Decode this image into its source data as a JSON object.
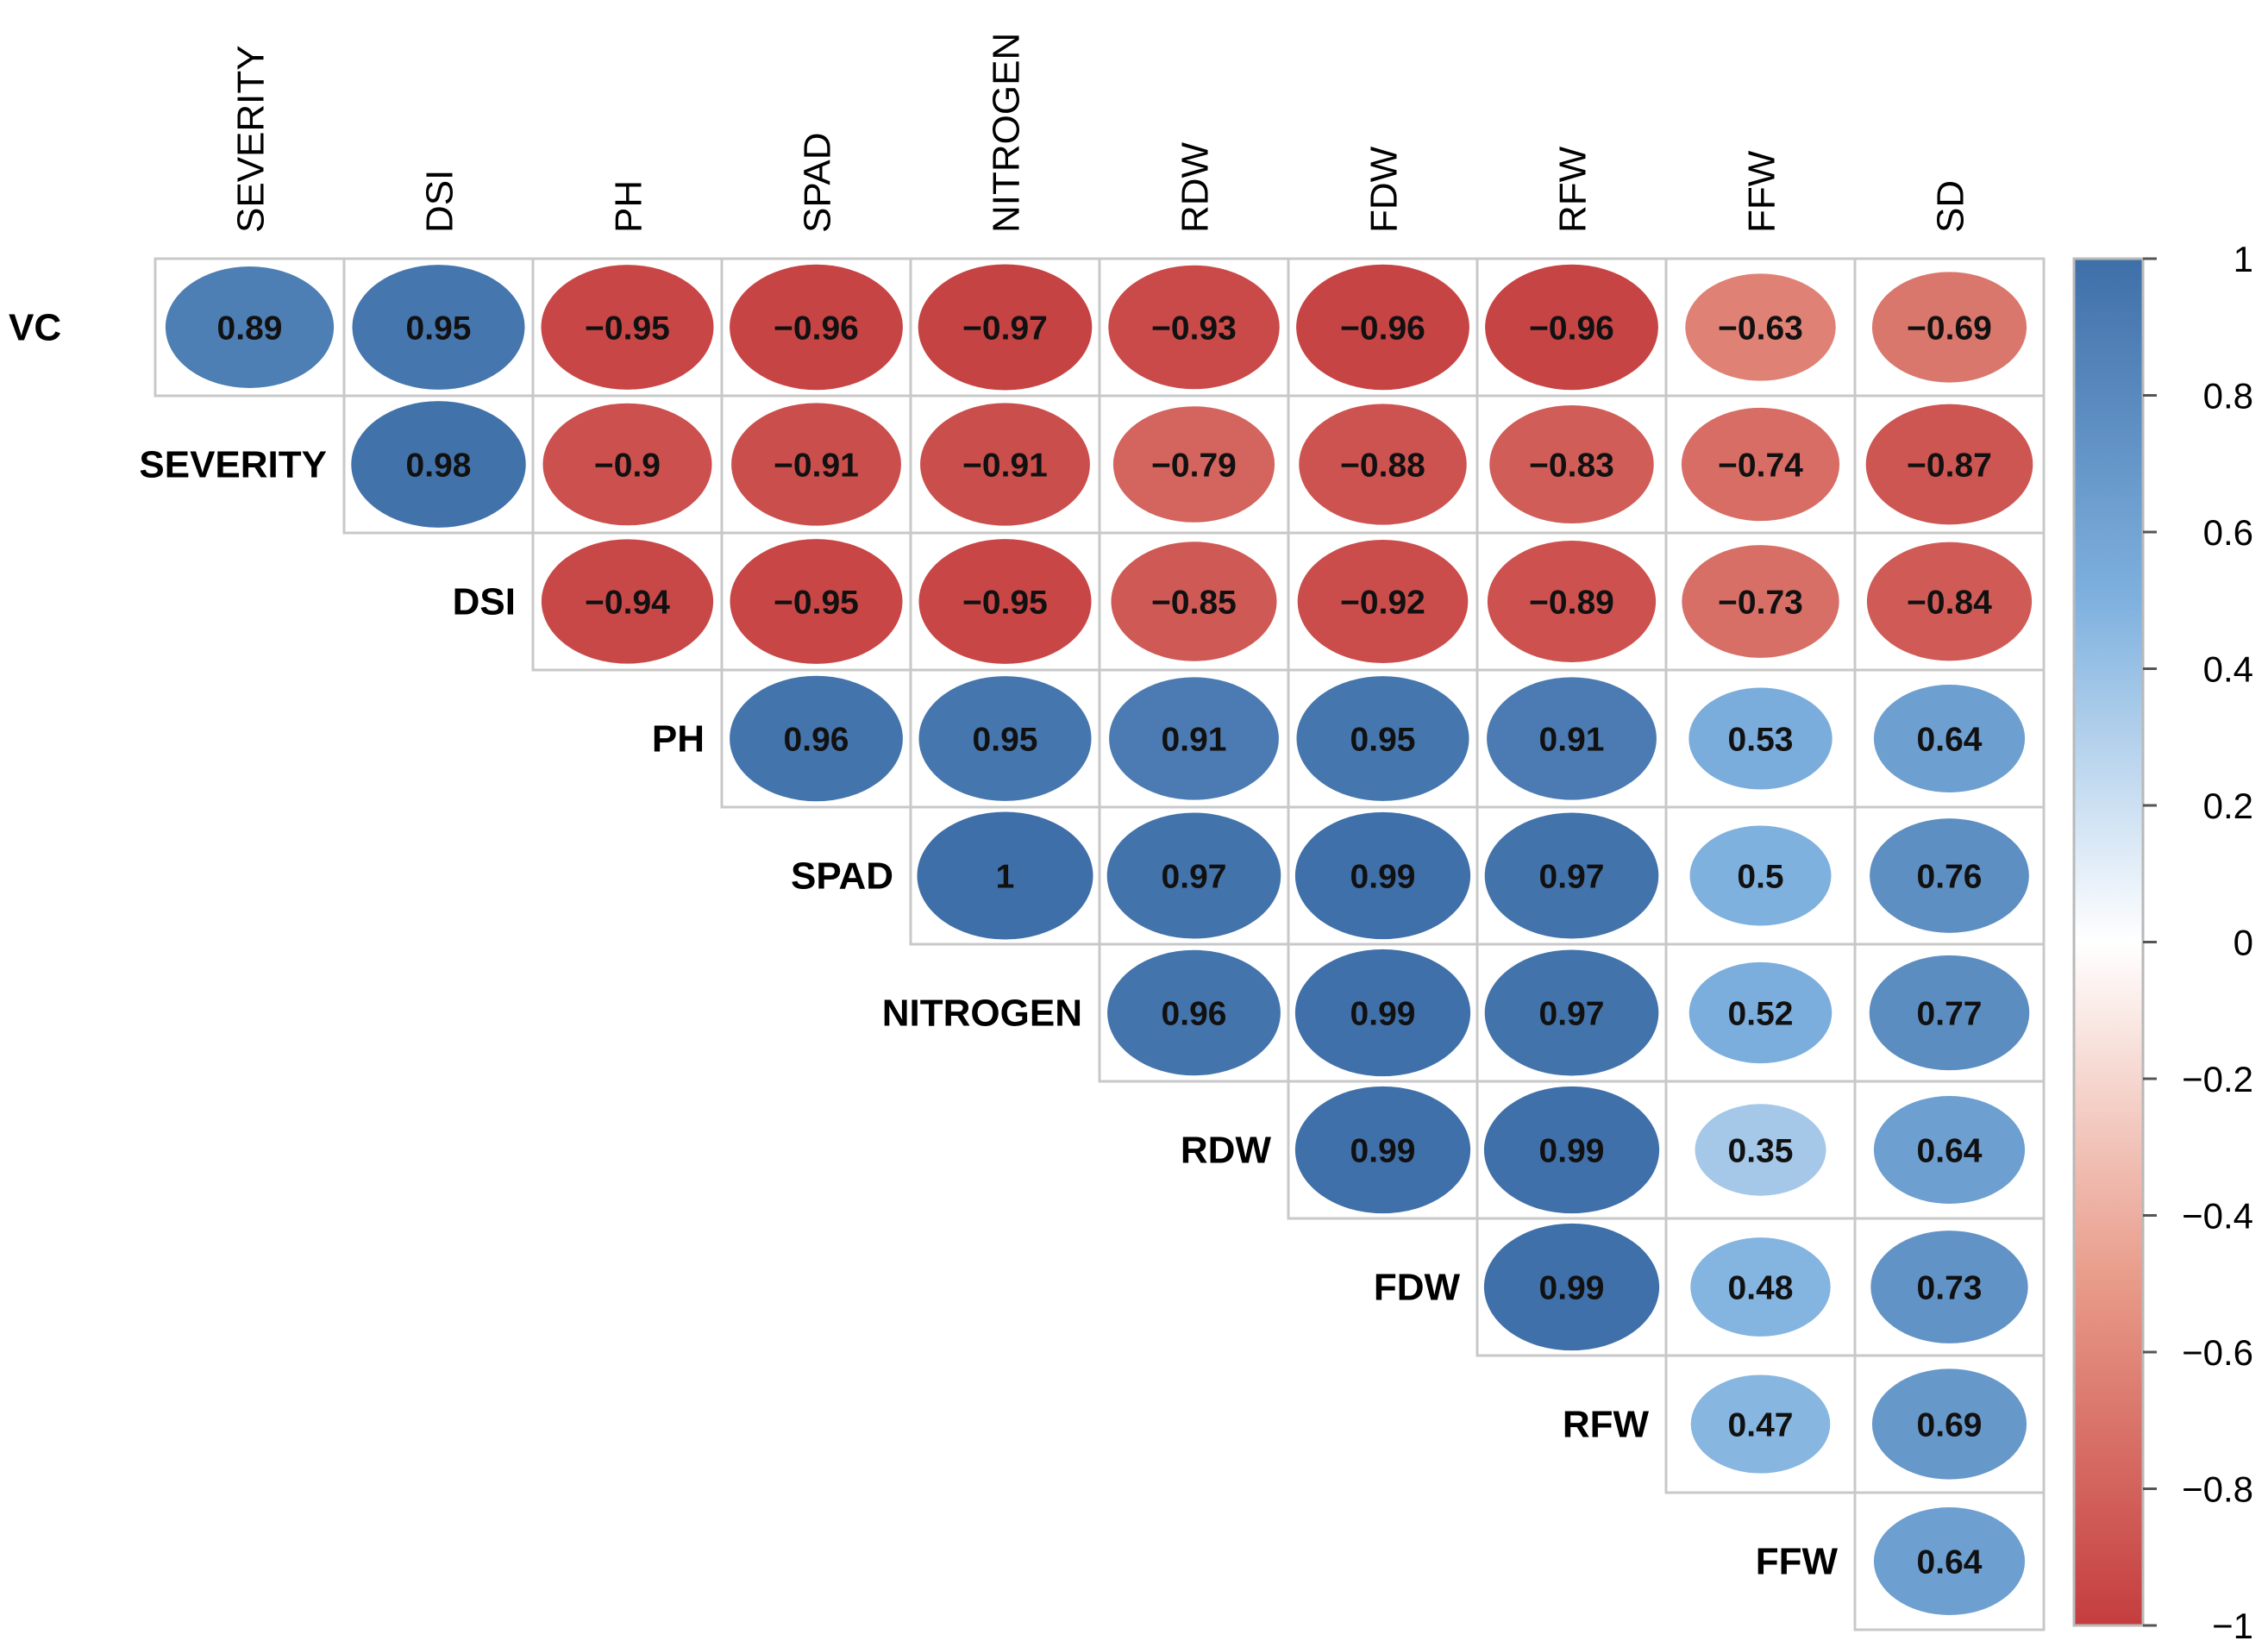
{
  "chart_data": {
    "type": "heatmap",
    "style": "correlation-matrix-ellipse-upper",
    "variables": [
      "VC",
      "SEVERITY",
      "DSI",
      "PH",
      "SPAD",
      "NITROGEN",
      "RDW",
      "FDW",
      "RFW",
      "FFW",
      "SD"
    ],
    "row_labels": [
      "VC",
      "SEVERITY",
      "DSI",
      "PH",
      "SPAD",
      "NITROGEN",
      "RDW",
      "FDW",
      "RFW",
      "FFW"
    ],
    "col_labels": [
      "SEVERITY",
      "DSI",
      "PH",
      "SPAD",
      "NITROGEN",
      "RDW",
      "FDW",
      "RFW",
      "FFW",
      "SD"
    ],
    "cells": [
      {
        "row": 0,
        "col": 0,
        "value": 0.89,
        "label": "0.89"
      },
      {
        "row": 0,
        "col": 1,
        "value": 0.95,
        "label": "0.95"
      },
      {
        "row": 0,
        "col": 2,
        "value": -0.95,
        "label": "−0.95"
      },
      {
        "row": 0,
        "col": 3,
        "value": -0.96,
        "label": "−0.96"
      },
      {
        "row": 0,
        "col": 4,
        "value": -0.97,
        "label": "−0.97"
      },
      {
        "row": 0,
        "col": 5,
        "value": -0.93,
        "label": "−0.93"
      },
      {
        "row": 0,
        "col": 6,
        "value": -0.96,
        "label": "−0.96"
      },
      {
        "row": 0,
        "col": 7,
        "value": -0.96,
        "label": "−0.96"
      },
      {
        "row": 0,
        "col": 8,
        "value": -0.63,
        "label": "−0.63"
      },
      {
        "row": 0,
        "col": 9,
        "value": -0.69,
        "label": "−0.69"
      },
      {
        "row": 1,
        "col": 1,
        "value": 0.98,
        "label": "0.98"
      },
      {
        "row": 1,
        "col": 2,
        "value": -0.9,
        "label": "−0.9"
      },
      {
        "row": 1,
        "col": 3,
        "value": -0.91,
        "label": "−0.91"
      },
      {
        "row": 1,
        "col": 4,
        "value": -0.91,
        "label": "−0.91"
      },
      {
        "row": 1,
        "col": 5,
        "value": -0.79,
        "label": "−0.79"
      },
      {
        "row": 1,
        "col": 6,
        "value": -0.88,
        "label": "−0.88"
      },
      {
        "row": 1,
        "col": 7,
        "value": -0.83,
        "label": "−0.83"
      },
      {
        "row": 1,
        "col": 8,
        "value": -0.74,
        "label": "−0.74"
      },
      {
        "row": 1,
        "col": 9,
        "value": -0.87,
        "label": "−0.87"
      },
      {
        "row": 2,
        "col": 2,
        "value": -0.94,
        "label": "−0.94"
      },
      {
        "row": 2,
        "col": 3,
        "value": -0.95,
        "label": "−0.95"
      },
      {
        "row": 2,
        "col": 4,
        "value": -0.95,
        "label": "−0.95"
      },
      {
        "row": 2,
        "col": 5,
        "value": -0.85,
        "label": "−0.85"
      },
      {
        "row": 2,
        "col": 6,
        "value": -0.92,
        "label": "−0.92"
      },
      {
        "row": 2,
        "col": 7,
        "value": -0.89,
        "label": "−0.89"
      },
      {
        "row": 2,
        "col": 8,
        "value": -0.73,
        "label": "−0.73"
      },
      {
        "row": 2,
        "col": 9,
        "value": -0.84,
        "label": "−0.84"
      },
      {
        "row": 3,
        "col": 3,
        "value": 0.96,
        "label": "0.96"
      },
      {
        "row": 3,
        "col": 4,
        "value": 0.95,
        "label": "0.95"
      },
      {
        "row": 3,
        "col": 5,
        "value": 0.91,
        "label": "0.91"
      },
      {
        "row": 3,
        "col": 6,
        "value": 0.95,
        "label": "0.95"
      },
      {
        "row": 3,
        "col": 7,
        "value": 0.91,
        "label": "0.91"
      },
      {
        "row": 3,
        "col": 8,
        "value": 0.53,
        "label": "0.53"
      },
      {
        "row": 3,
        "col": 9,
        "value": 0.64,
        "label": "0.64"
      },
      {
        "row": 4,
        "col": 4,
        "value": 1.0,
        "label": "1"
      },
      {
        "row": 4,
        "col": 5,
        "value": 0.97,
        "label": "0.97"
      },
      {
        "row": 4,
        "col": 6,
        "value": 0.99,
        "label": "0.99"
      },
      {
        "row": 4,
        "col": 7,
        "value": 0.97,
        "label": "0.97"
      },
      {
        "row": 4,
        "col": 8,
        "value": 0.5,
        "label": "0.5"
      },
      {
        "row": 4,
        "col": 9,
        "value": 0.76,
        "label": "0.76"
      },
      {
        "row": 5,
        "col": 5,
        "value": 0.96,
        "label": "0.96"
      },
      {
        "row": 5,
        "col": 6,
        "value": 0.99,
        "label": "0.99"
      },
      {
        "row": 5,
        "col": 7,
        "value": 0.97,
        "label": "0.97"
      },
      {
        "row": 5,
        "col": 8,
        "value": 0.52,
        "label": "0.52"
      },
      {
        "row": 5,
        "col": 9,
        "value": 0.77,
        "label": "0.77"
      },
      {
        "row": 6,
        "col": 6,
        "value": 0.99,
        "label": "0.99"
      },
      {
        "row": 6,
        "col": 7,
        "value": 0.99,
        "label": "0.99"
      },
      {
        "row": 6,
        "col": 8,
        "value": 0.35,
        "label": "0.35"
      },
      {
        "row": 6,
        "col": 9,
        "value": 0.64,
        "label": "0.64"
      },
      {
        "row": 7,
        "col": 7,
        "value": 0.99,
        "label": "0.99"
      },
      {
        "row": 7,
        "col": 8,
        "value": 0.48,
        "label": "0.48"
      },
      {
        "row": 7,
        "col": 9,
        "value": 0.73,
        "label": "0.73"
      },
      {
        "row": 8,
        "col": 8,
        "value": 0.47,
        "label": "0.47"
      },
      {
        "row": 8,
        "col": 9,
        "value": 0.69,
        "label": "0.69"
      },
      {
        "row": 9,
        "col": 9,
        "value": 0.64,
        "label": "0.64"
      }
    ],
    "color_scale": {
      "min": -1,
      "max": 1,
      "stops": [
        {
          "value": -1,
          "color": "#c43d3f"
        },
        {
          "value": -0.5,
          "color": "#e89a88"
        },
        {
          "value": 0,
          "color": "#ffffff"
        },
        {
          "value": 0.5,
          "color": "#7fb1df"
        },
        {
          "value": 1,
          "color": "#3f6fa8"
        }
      ]
    },
    "legend": {
      "placement": "right",
      "ticks": [
        1,
        0.8,
        0.6,
        0.4,
        0.2,
        0,
        -0.2,
        -0.4,
        -0.6,
        -0.8,
        -1
      ],
      "tick_labels": [
        "1",
        "0.8",
        "0.6",
        "0.4",
        "0.2",
        "0",
        "−0.2",
        "−0.4",
        "−0.6",
        "−0.8",
        "−1"
      ]
    },
    "grid": true,
    "title": "",
    "xlabel": "",
    "ylabel": ""
  }
}
